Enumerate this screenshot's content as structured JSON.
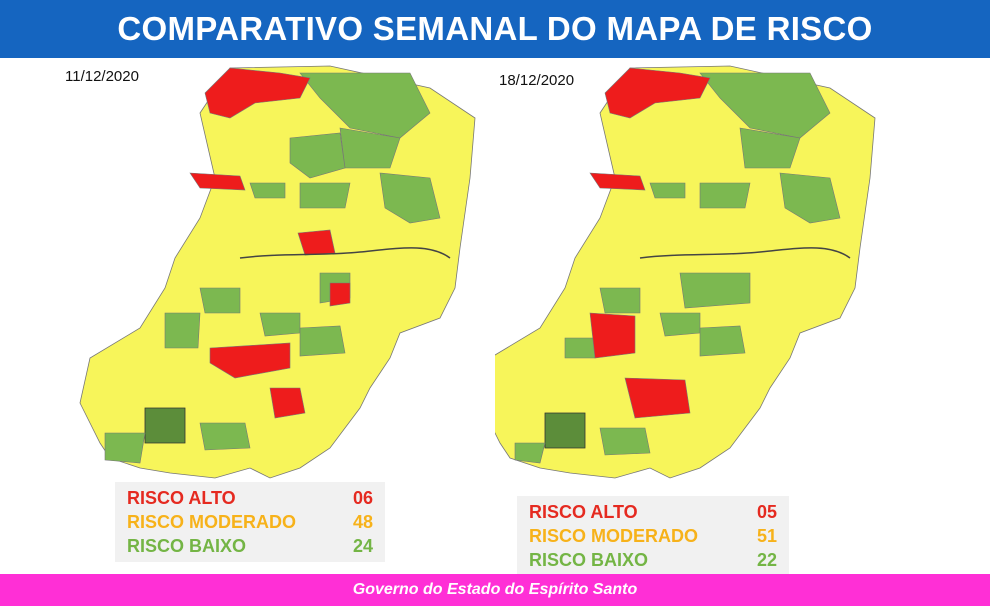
{
  "header": {
    "title": "COMPARATIVO SEMANAL DO MAPA DE RISCO"
  },
  "colors": {
    "high": "#ee1c1c",
    "moderate": "#ffff5a",
    "low": "#7cb850",
    "header_bg": "#1565c0",
    "footer_bg": "#ff2fd6"
  },
  "maps": [
    {
      "date": "11/12/2020",
      "legend": [
        {
          "label": "RISCO ALTO",
          "value": "06",
          "color": "#e52a20"
        },
        {
          "label": "RISCO MODERADO",
          "value": "48",
          "color": "#f7b21a"
        },
        {
          "label": "RISCO BAIXO",
          "value": "24",
          "color": "#74b545"
        }
      ]
    },
    {
      "date": "18/12/2020",
      "legend": [
        {
          "label": "RISCO ALTO",
          "value": "05",
          "color": "#e52a20"
        },
        {
          "label": "RISCO MODERADO",
          "value": "51",
          "color": "#f7b21a"
        },
        {
          "label": "RISCO BAIXO",
          "value": "22",
          "color": "#74b545"
        }
      ]
    }
  ],
  "footer": {
    "text": "Governo do Estado do Espírito Santo"
  }
}
